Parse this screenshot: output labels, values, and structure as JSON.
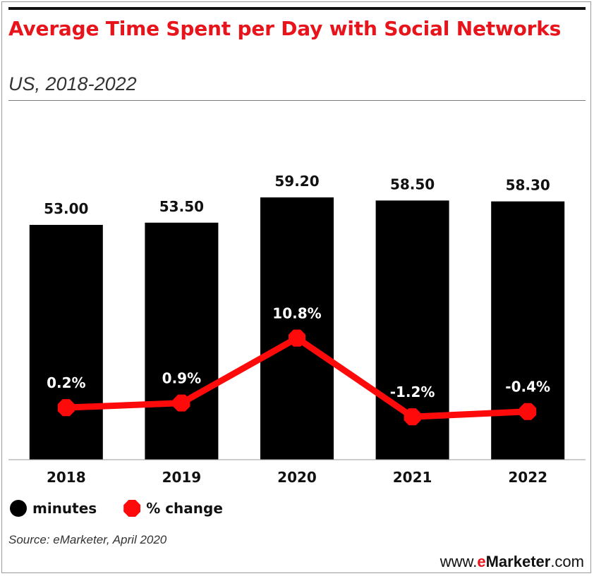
{
  "header": {
    "title": "Average Time Spent per Day with Social Networks",
    "subtitle": "US, 2018-2022"
  },
  "chart_data": {
    "type": "bar",
    "categories": [
      "2018",
      "2019",
      "2020",
      "2021",
      "2022"
    ],
    "series": [
      {
        "name": "minutes",
        "type": "bar",
        "values": [
          53.0,
          53.5,
          59.2,
          58.5,
          58.3
        ],
        "labels": [
          "53.00",
          "53.50",
          "59.20",
          "58.50",
          "58.30"
        ],
        "color": "#000000"
      },
      {
        "name": "% change",
        "type": "line",
        "values": [
          0.2,
          0.9,
          10.8,
          -1.2,
          -0.4
        ],
        "labels": [
          "0.2%",
          "0.9%",
          "10.8%",
          "-1.2%",
          "-0.4%"
        ],
        "color": "#ff0a0a"
      }
    ],
    "grid": false,
    "legend_position": "bottom-left"
  },
  "legend": {
    "items": [
      {
        "label": "minutes",
        "color": "#000000"
      },
      {
        "label": "% change",
        "color": "#ff0a0a"
      }
    ]
  },
  "footer": {
    "source": "Source: eMarketer, April 2020",
    "brand_prefix": "www.",
    "brand_e": "e",
    "brand_name": "Marketer",
    "brand_suffix": ".com"
  },
  "colors": {
    "title": "#e8141b",
    "bars": "#000000",
    "line": "#ff0a0a"
  }
}
